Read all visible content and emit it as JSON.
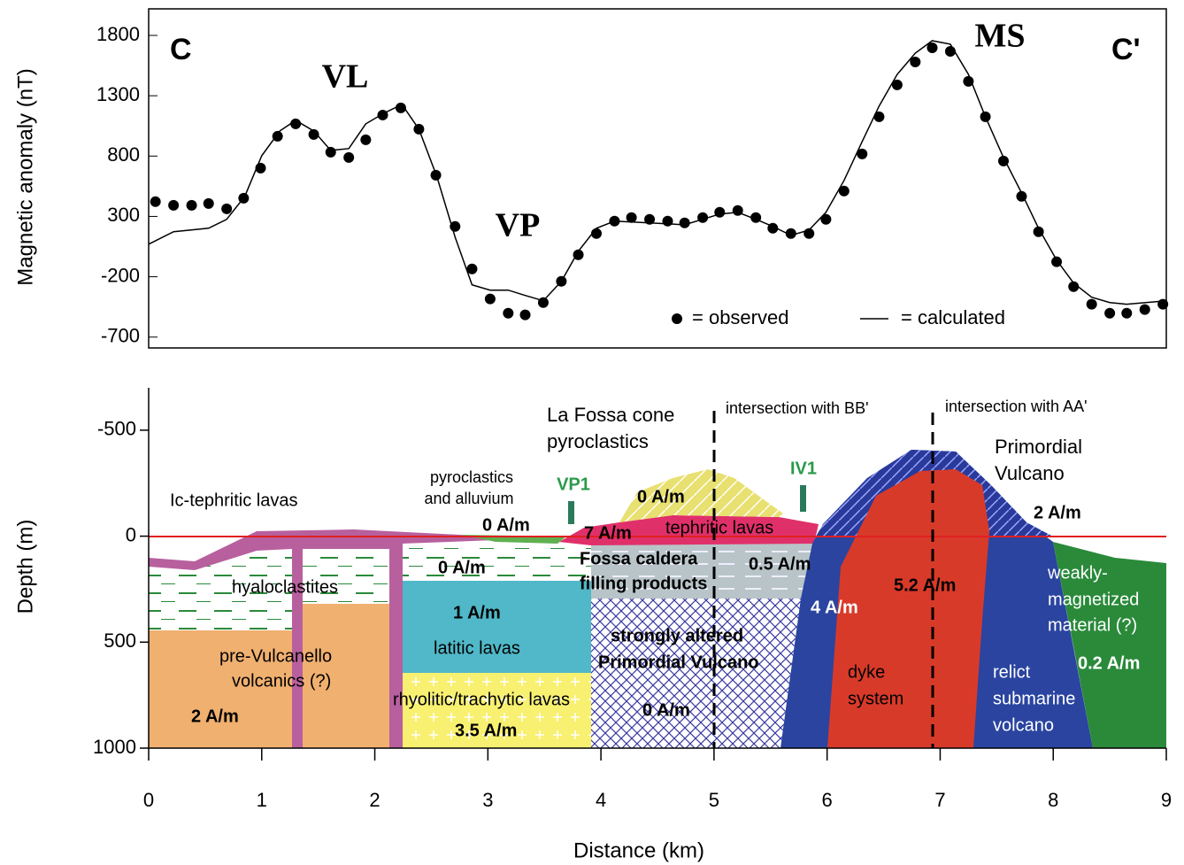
{
  "chart_data": [
    {
      "type": "line",
      "ylabel": "Magnetic anomaly (nT)",
      "xlim": [
        0,
        9
      ],
      "ylim": [
        -790,
        2020
      ],
      "yticks": [
        1800,
        1300,
        800,
        300,
        -200,
        -700
      ],
      "labels": [
        "C",
        "VL",
        "VP",
        "MS",
        "C'"
      ],
      "series": [
        {
          "name": "= observed",
          "color": "#000000",
          "marker": "dot",
          "x": [
            0.06,
            0.22,
            0.38,
            0.53,
            0.69,
            0.84,
            0.99,
            1.14,
            1.3,
            1.46,
            1.61,
            1.77,
            1.92,
            2.07,
            2.23,
            2.39,
            2.54,
            2.71,
            2.86,
            3.02,
            3.18,
            3.33,
            3.49,
            3.65,
            3.8,
            3.96,
            4.12,
            4.27,
            4.43,
            4.59,
            4.74,
            4.9,
            5.05,
            5.21,
            5.37,
            5.52,
            5.68,
            5.84,
            5.99,
            6.15,
            6.31,
            6.46,
            6.62,
            6.78,
            6.93,
            7.09,
            7.25,
            7.4,
            7.56,
            7.72,
            7.87,
            8.03,
            8.18,
            8.34,
            8.5,
            8.65,
            8.81,
            8.97
          ],
          "values": [
            422,
            392,
            392,
            407,
            363,
            451,
            700,
            964,
            1067,
            979,
            832,
            788,
            935,
            1140,
            1199,
            1023,
            642,
            217,
            -135,
            -384,
            -502,
            -516,
            -414,
            -238,
            -18,
            158,
            261,
            290,
            276,
            261,
            246,
            290,
            334,
            349,
            290,
            202,
            158,
            158,
            276,
            510,
            818,
            1126,
            1390,
            1580,
            1697,
            1668,
            1419,
            1126,
            759,
            466,
            173,
            -76,
            -282,
            -428,
            -502,
            -502,
            -472,
            -428
          ]
        },
        {
          "name": "= calculated",
          "color": "#000000",
          "marker": "line",
          "x": [
            0,
            0.22,
            0.53,
            0.69,
            0.85,
            1.0,
            1.16,
            1.3,
            1.46,
            1.61,
            1.77,
            1.92,
            2.08,
            2.24,
            2.39,
            2.55,
            2.71,
            2.86,
            3.02,
            3.18,
            3.33,
            3.49,
            3.65,
            3.8,
            3.96,
            4.12,
            4.43,
            4.74,
            5.05,
            5.21,
            5.37,
            5.52,
            5.68,
            5.84,
            5.99,
            6.15,
            6.31,
            6.46,
            6.62,
            6.78,
            6.93,
            7.09,
            7.25,
            7.4,
            7.56,
            7.72,
            7.87,
            8.03,
            8.18,
            8.34,
            8.5,
            8.65,
            9.0
          ],
          "values": [
            70,
            173,
            202,
            276,
            466,
            803,
            1008,
            1096,
            1008,
            847,
            862,
            1067,
            1155,
            1228,
            1023,
            627,
            129,
            -267,
            -311,
            -311,
            -355,
            -399,
            -238,
            11,
            202,
            261,
            246,
            231,
            319,
            334,
            276,
            217,
            143,
            187,
            334,
            598,
            920,
            1214,
            1477,
            1653,
            1756,
            1727,
            1477,
            1126,
            788,
            495,
            202,
            -62,
            -252,
            -370,
            -414,
            -428,
            -399
          ]
        }
      ]
    },
    {
      "type": "cross-section",
      "xlabel": "Distance (km)",
      "ylabel": "Depth (m)",
      "xlim": [
        0,
        9
      ],
      "xticks": [
        0,
        1,
        2,
        3,
        4,
        5,
        6,
        7,
        8,
        9
      ],
      "ylim": [
        -700,
        1000
      ],
      "yticks": [
        -500,
        0,
        500,
        1000
      ],
      "y_inverted": true,
      "annotations": [
        "La Fossa cone",
        "pyroclastics",
        "intersection with BB'",
        "intersection with AA'",
        "Primordial",
        "Vulcano",
        "2 A/m",
        "Ic-tephritic lavas",
        "pyroclastics",
        "and alluvium",
        "VP1",
        "IV1",
        "0 A/m",
        "0 A/m",
        "7 A/m",
        "tephritic lavas",
        "0 A/m",
        "Fossa caldera",
        "filling products",
        "0.5 A/m",
        "hyaloclastites",
        "1 A/m",
        "4 A/m",
        "5.2 A/m",
        "weakly-",
        "magnetized",
        "material (?)",
        "0.2 A/m",
        "latitic lavas",
        "strongly altered",
        "Primordial Vulcano",
        "pre-Vulcanello",
        "volcanics (?)",
        "dyke",
        "system",
        "relict",
        "submarine",
        "volcano",
        "rhyolitic/trachytic lavas",
        "0 A/m",
        "3.5 A/m",
        "2 A/m"
      ]
    }
  ]
}
